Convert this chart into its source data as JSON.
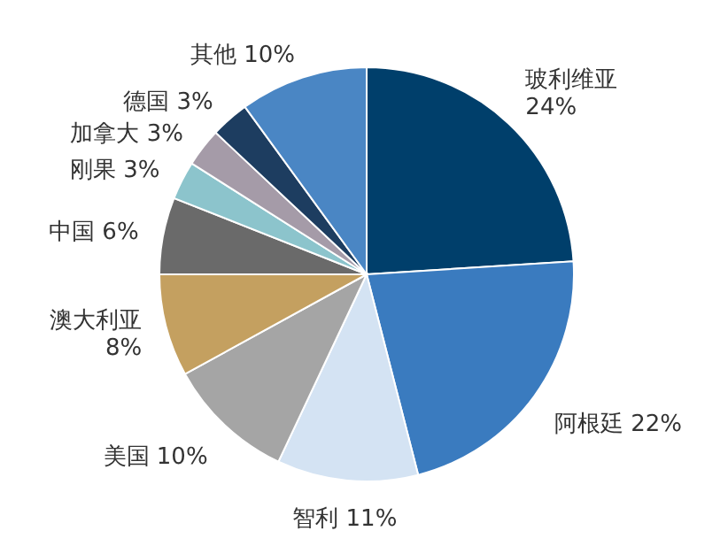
{
  "chart_data": {
    "type": "pie",
    "categories": [
      "玻利维亚",
      "阿根廷",
      "智利",
      "美国",
      "澳大利亚",
      "中国",
      "刚果",
      "加拿大",
      "德国",
      "其他"
    ],
    "values": [
      24,
      22,
      11,
      10,
      8,
      6,
      3,
      3,
      3,
      10
    ],
    "value_labels": [
      "24%",
      "22%",
      "11%",
      "10%",
      "8%",
      "6%",
      "3%",
      "3%",
      "3%",
      "10%"
    ],
    "colors": [
      "#003f6b",
      "#3a7bbf",
      "#d4e3f3",
      "#a5a5a5",
      "#c4a060",
      "#6a6a6a",
      "#8cc4cc",
      "#a59ba8",
      "#1d3d60",
      "#4a86c4"
    ]
  }
}
